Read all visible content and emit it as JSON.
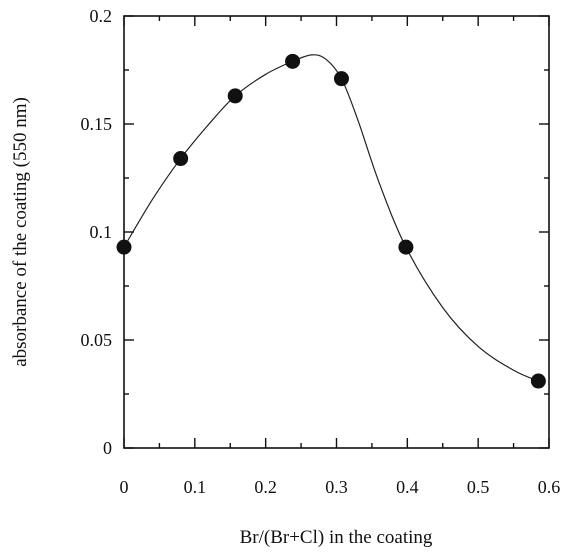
{
  "chart_data": {
    "type": "scatter",
    "title": "",
    "xlabel": "Br/(Br+Cl) in the coating",
    "ylabel": "absorbance of the coating (550 nm)",
    "xlim": [
      0,
      0.6
    ],
    "ylim": [
      0,
      0.2
    ],
    "grid": false,
    "x_ticks": [
      0,
      0.1,
      0.2,
      0.3,
      0.4,
      0.5,
      0.6
    ],
    "x_tick_labels": [
      "0",
      "0.1",
      "0.2",
      "0.3",
      "0.4",
      "0.5",
      "0.6"
    ],
    "y_ticks": [
      0,
      0.05,
      0.1,
      0.15,
      0.2
    ],
    "y_tick_labels": [
      "0",
      "0.05",
      "0.1",
      "0.15",
      "0.2"
    ],
    "x_minor_step": 0.05,
    "y_minor_step": 0.025,
    "series": [
      {
        "marker": "filled-circle",
        "points": [
          {
            "x": 0.0,
            "y": 0.093
          },
          {
            "x": 0.08,
            "y": 0.134
          },
          {
            "x": 0.157,
            "y": 0.163
          },
          {
            "x": 0.238,
            "y": 0.179
          },
          {
            "x": 0.307,
            "y": 0.171
          },
          {
            "x": 0.398,
            "y": 0.093
          },
          {
            "x": 0.585,
            "y": 0.031
          }
        ]
      }
    ],
    "fit_curve": [
      {
        "x": 0.0,
        "y": 0.093
      },
      {
        "x": 0.04,
        "y": 0.115
      },
      {
        "x": 0.08,
        "y": 0.134
      },
      {
        "x": 0.12,
        "y": 0.15
      },
      {
        "x": 0.157,
        "y": 0.163
      },
      {
        "x": 0.2,
        "y": 0.173
      },
      {
        "x": 0.238,
        "y": 0.179
      },
      {
        "x": 0.265,
        "y": 0.182
      },
      {
        "x": 0.285,
        "y": 0.18
      },
      {
        "x": 0.307,
        "y": 0.171
      },
      {
        "x": 0.33,
        "y": 0.152
      },
      {
        "x": 0.36,
        "y": 0.123
      },
      {
        "x": 0.398,
        "y": 0.093
      },
      {
        "x": 0.45,
        "y": 0.065
      },
      {
        "x": 0.5,
        "y": 0.047
      },
      {
        "x": 0.55,
        "y": 0.036
      },
      {
        "x": 0.585,
        "y": 0.031
      }
    ],
    "colors": {
      "ink": "#111111",
      "background": "#ffffff"
    }
  }
}
